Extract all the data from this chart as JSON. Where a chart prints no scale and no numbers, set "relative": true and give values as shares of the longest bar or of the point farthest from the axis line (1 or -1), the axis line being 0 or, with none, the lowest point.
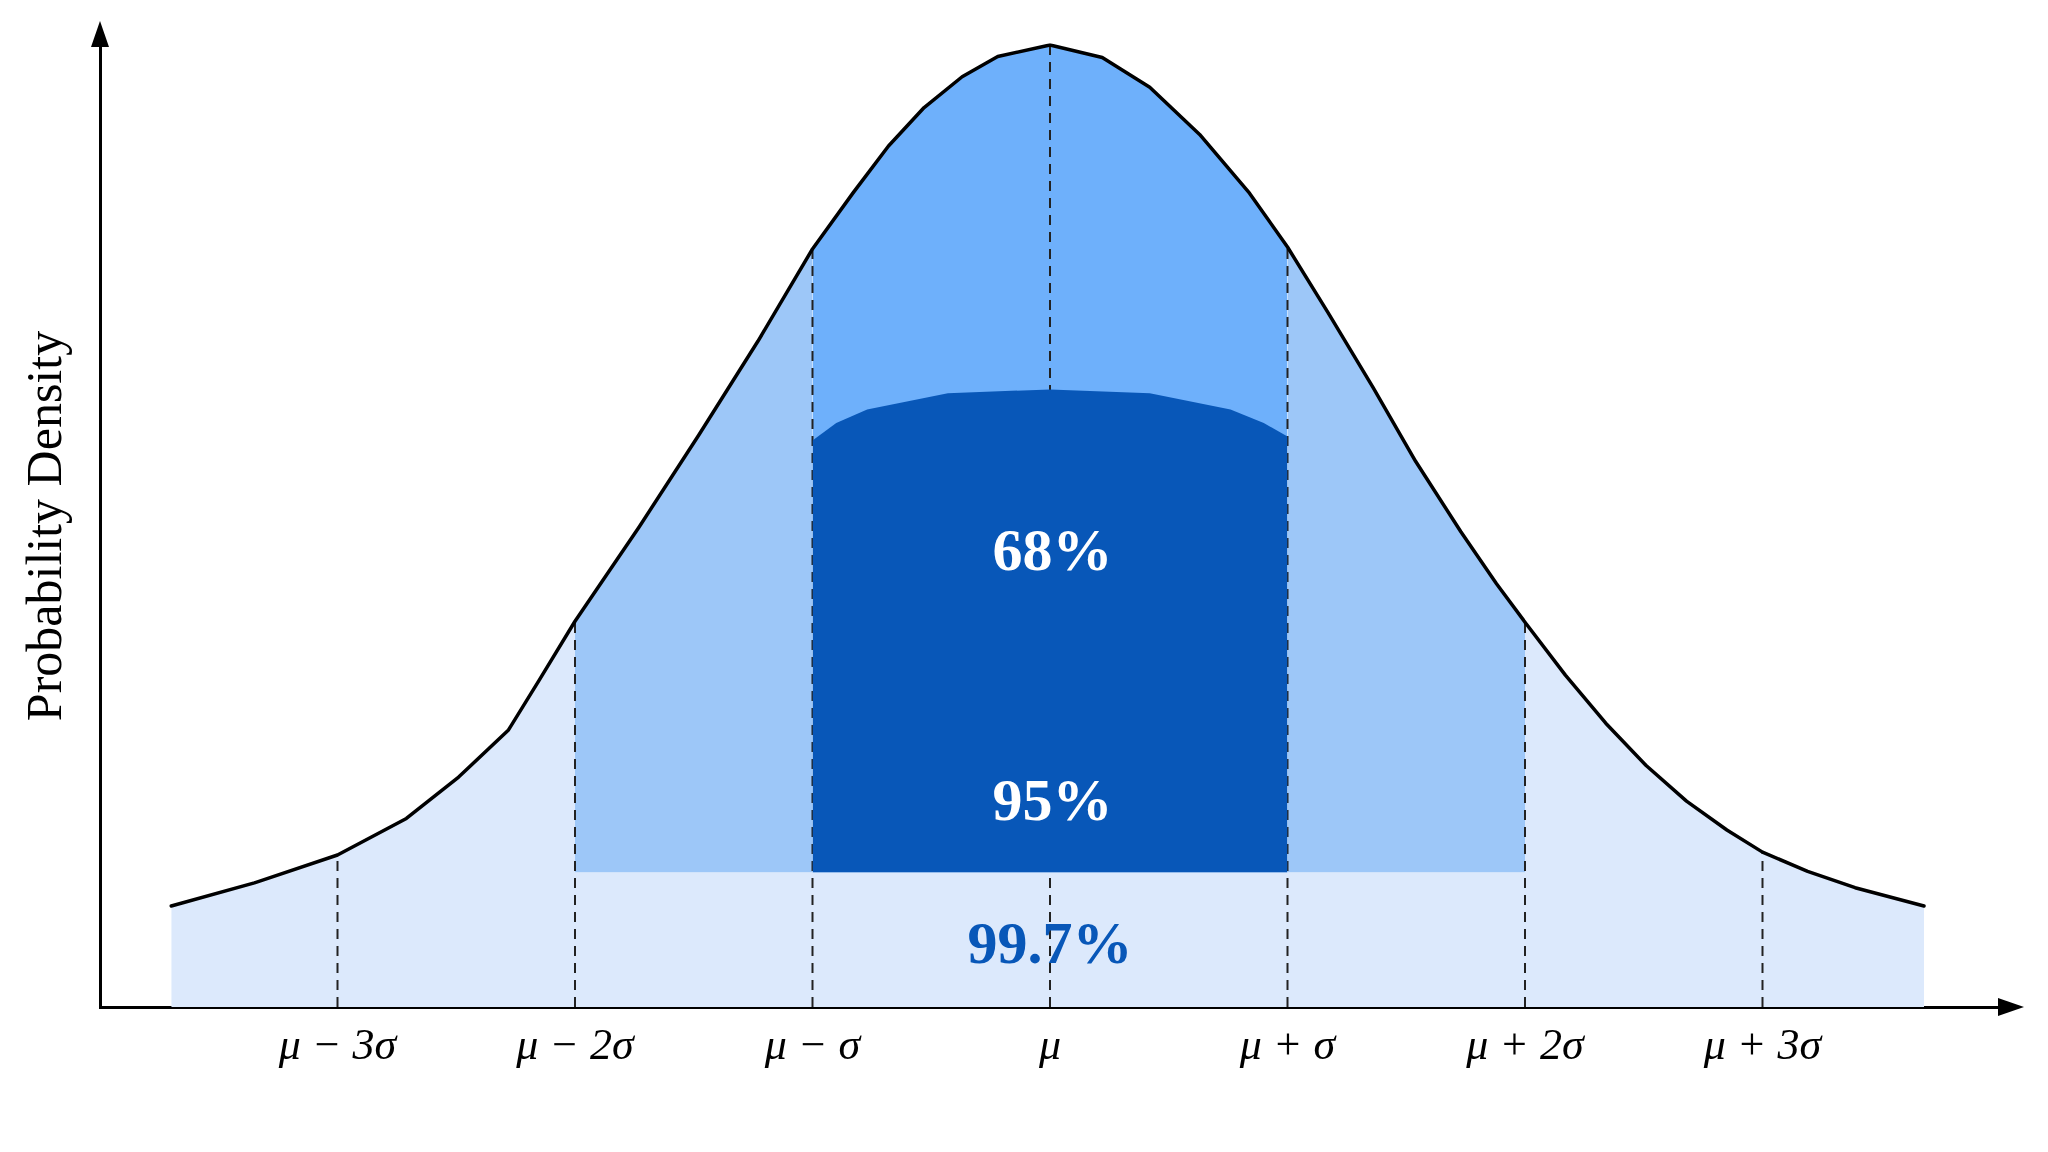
{
  "chart_data": {
    "type": "area",
    "relative": true,
    "ylabel": "Probability Density",
    "xlim": [
      -4,
      4
    ],
    "xticks": [
      {
        "value": -3,
        "label": "μ − 3σ"
      },
      {
        "value": -2,
        "label": "μ − 2σ"
      },
      {
        "value": -1,
        "label": "μ − σ"
      },
      {
        "value": 0,
        "label": "μ"
      },
      {
        "value": 1,
        "label": "μ + σ"
      },
      {
        "value": 2,
        "label": "μ + 2σ"
      },
      {
        "value": 3,
        "label": "μ + 3σ"
      }
    ],
    "tick_labels": "x",
    "grid": false,
    "legend": false,
    "marker": "none",
    "series": [
      {
        "color": "#dce9fc",
        "x": [
          -3.7,
          -3.35,
          -3,
          -2.71,
          -2.49,
          -2.28,
          -2.15,
          -2,
          -2,
          2,
          2,
          2.17,
          2.34,
          2.51,
          2.68,
          2.85,
          3,
          3.19,
          3.39,
          3.68
        ],
        "values": [
          0.105,
          0.129,
          0.158,
          0.196,
          0.239,
          0.288,
          0.34,
          0.401,
          0.14,
          0.14,
          0.4,
          0.345,
          0.295,
          0.251,
          0.214,
          0.184,
          0.161,
          0.141,
          0.124,
          0.105
        ]
      },
      {
        "color": "#9dc7f8",
        "x": [
          -2,
          -1.73,
          -1.48,
          -1.23,
          -1,
          0,
          1,
          1.17,
          1.36,
          1.54,
          1.73,
          1.88,
          2
        ],
        "values": [
          0.401,
          0.499,
          0.594,
          0.692,
          0.788,
          null,
          0.79,
          0.722,
          0.644,
          0.567,
          0.494,
          0.44,
          0.4
        ]
      },
      {
        "color": "#6eb0fb",
        "x": [
          -1,
          -0.83,
          -0.68,
          -0.53,
          -0.37,
          -0.22,
          0,
          0.22,
          0.42,
          0.63,
          0.84,
          1
        ],
        "values": [
          0.788,
          0.846,
          0.895,
          0.935,
          0.967,
          0.988,
          1,
          0.987,
          0.956,
          0.907,
          0.846,
          0.79
        ]
      },
      {
        "color": "#0857b8",
        "x": [
          -1,
          -0.9,
          -0.77,
          -0.43,
          0,
          0.42,
          0.76,
          0.9,
          1
        ],
        "values": [
          0.589,
          0.607,
          0.621,
          0.638,
          0.642,
          0.638,
          0.621,
          0.607,
          0.593
        ]
      },
      {
        "type": "line",
        "color": "#000000",
        "x": [
          -3.7,
          -3.35,
          -3,
          -2.71,
          -2.49,
          -2.28,
          -2.15,
          -2,
          -1.73,
          -1.48,
          -1.23,
          -1,
          -0.83,
          -0.68,
          -0.53,
          -0.37,
          -0.22,
          0,
          0.22,
          0.42,
          0.63,
          0.84,
          1,
          1.17,
          1.36,
          1.54,
          1.73,
          1.88,
          2,
          2.17,
          2.34,
          2.51,
          2.68,
          2.85,
          3,
          3.19,
          3.39,
          3.68
        ],
        "values": [
          0.105,
          0.129,
          0.158,
          0.196,
          0.239,
          0.288,
          0.34,
          0.401,
          0.499,
          0.594,
          0.692,
          0.788,
          0.846,
          0.895,
          0.935,
          0.967,
          0.988,
          1,
          0.987,
          0.956,
          0.907,
          0.846,
          0.79,
          0.722,
          0.644,
          0.567,
          0.494,
          0.44,
          0.4,
          0.345,
          0.295,
          0.251,
          0.214,
          0.184,
          0.161,
          0.141,
          0.124,
          0.105
        ]
      }
    ],
    "ref_lines": [
      {
        "axis": "x",
        "value": -3,
        "color": "#222222",
        "line_style": "dashed"
      },
      {
        "axis": "x",
        "value": -2,
        "color": "#222222",
        "line_style": "dashed"
      },
      {
        "axis": "x",
        "value": -1,
        "color": "#222222",
        "line_style": "dashed"
      },
      {
        "axis": "x",
        "value": 0,
        "color": "#222222",
        "line_style": "dashed"
      },
      {
        "axis": "x",
        "value": 1,
        "color": "#222222",
        "line_style": "dashed"
      },
      {
        "axis": "x",
        "value": 2,
        "color": "#222222",
        "line_style": "dashed"
      },
      {
        "axis": "x",
        "value": 3,
        "color": "#222222",
        "line_style": "dashed"
      }
    ],
    "annotations": [
      {
        "text": "68%",
        "x": 0.01,
        "y": 0.47
      },
      {
        "text": "95%",
        "x": 0.01,
        "y": 0.21
      },
      "99.7%"
    ]
  }
}
